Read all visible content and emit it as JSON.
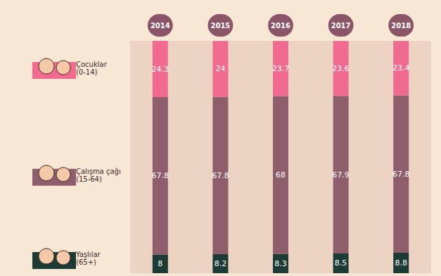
{
  "chart_data": {
    "type": "bar",
    "stacked": true,
    "data_labels": true,
    "tick_labels": "x",
    "grid": false,
    "categories": [
      "2014",
      "2015",
      "2016",
      "2017",
      "2018"
    ],
    "series": [
      {
        "name": "Çocuklar (0-14)",
        "color": "#f06b8f",
        "values": [
          24.3,
          24,
          23.7,
          23.6,
          23.4
        ]
      },
      {
        "name": "Çalışma çağı (15-64)",
        "color": "#8e5e6c",
        "values": [
          67.8,
          67.8,
          68,
          67.9,
          67.8
        ]
      },
      {
        "name": "Yaşlılar (65+)",
        "color": "#1d3b35",
        "values": [
          8,
          8.2,
          8.3,
          8.5,
          8.8
        ]
      }
    ],
    "ylim": [
      0,
      100.1
    ]
  }
}
